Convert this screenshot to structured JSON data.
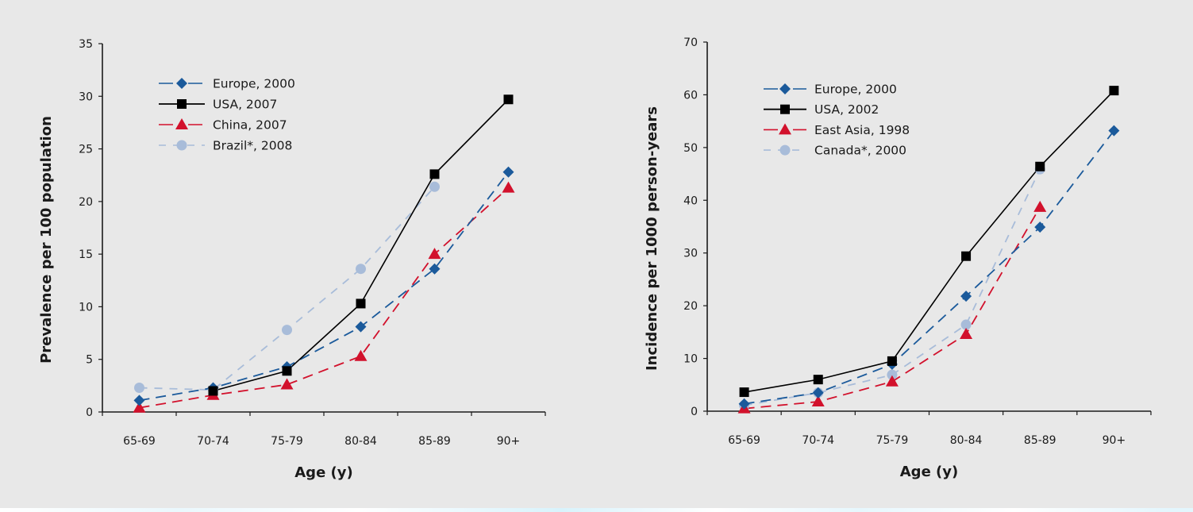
{
  "chart_data": [
    {
      "id": "prevalence",
      "type": "line",
      "title": "",
      "xlabel": "Age (y)",
      "ylabel": "Prevalence per 100 population",
      "categories": [
        "65-69",
        "70-74",
        "75-79",
        "80-84",
        "85-89",
        "90+"
      ],
      "ylim": [
        0,
        35
      ],
      "yticks": [
        "0",
        "5",
        "10",
        "15",
        "20",
        "25",
        "30",
        "35"
      ],
      "ytick_values": [
        0,
        5,
        10,
        15,
        20,
        25,
        30,
        35
      ],
      "grid": false,
      "legend_position": "top-left",
      "series": [
        {
          "name": "Europe, 2000",
          "marker": "diamond",
          "line": "dashed",
          "color": "#1b5a9b",
          "values": [
            1.1,
            2.3,
            4.3,
            8.1,
            13.6,
            22.8
          ]
        },
        {
          "name": "USA, 2007",
          "marker": "square",
          "line": "solid",
          "color": "#000000",
          "values": [
            null,
            2.0,
            3.9,
            10.3,
            22.6,
            29.7
          ]
        },
        {
          "name": "China, 2007",
          "marker": "triangle",
          "line": "dashed",
          "color": "#d2112c",
          "values": [
            0.4,
            1.6,
            2.6,
            5.3,
            15.0,
            21.3
          ]
        },
        {
          "name": "Brazil*, 2008",
          "marker": "circle",
          "line": "dashed-light",
          "color": "#a8bcd9",
          "values": [
            2.3,
            2.1,
            7.8,
            13.6,
            21.4,
            null
          ]
        }
      ]
    },
    {
      "id": "incidence",
      "type": "line",
      "title": "",
      "xlabel": "Age (y)",
      "ylabel": "Incidence per 1000 person-years",
      "categories": [
        "65-69",
        "70-74",
        "75-79",
        "80-84",
        "85-89",
        "90+"
      ],
      "ylim": [
        0,
        70
      ],
      "yticks": [
        "0",
        "10",
        "20",
        "30",
        "40",
        "50",
        "60",
        "70"
      ],
      "ytick_values": [
        0,
        10,
        20,
        30,
        40,
        50,
        60,
        70
      ],
      "grid": false,
      "legend_position": "top-left",
      "series": [
        {
          "name": "Europe, 2000",
          "marker": "diamond",
          "line": "dashed",
          "color": "#1b5a9b",
          "values": [
            1.4,
            3.5,
            8.9,
            21.8,
            34.9,
            53.2
          ]
        },
        {
          "name": "USA, 2002",
          "marker": "square",
          "line": "solid",
          "color": "#000000",
          "values": [
            3.6,
            6.0,
            9.5,
            29.4,
            46.4,
            60.8
          ]
        },
        {
          "name": "East Asia, 1998",
          "marker": "triangle",
          "line": "dashed",
          "color": "#d2112c",
          "values": [
            0.5,
            1.8,
            5.6,
            14.6,
            38.7,
            null
          ]
        },
        {
          "name": "Canada*, 2000",
          "marker": "circle",
          "line": "dashed-light",
          "color": "#a8bcd9",
          "values": [
            1.1,
            3.5,
            6.9,
            16.4,
            45.9,
            null
          ]
        }
      ]
    }
  ]
}
